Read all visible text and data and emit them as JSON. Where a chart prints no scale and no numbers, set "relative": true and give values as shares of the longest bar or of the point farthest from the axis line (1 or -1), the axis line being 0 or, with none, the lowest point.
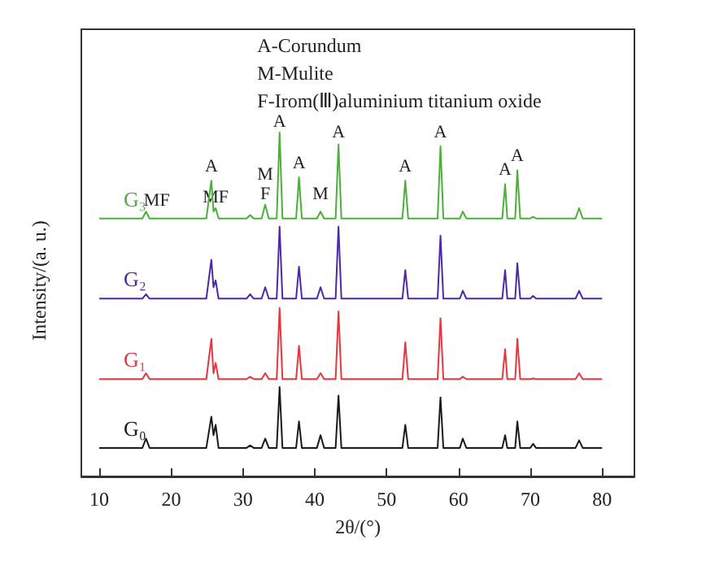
{
  "chart_data": {
    "type": "line",
    "relative": true,
    "xlabel": "2θ/(°)",
    "ylabel": "Intensity/(a. u.)",
    "x": [
      10,
      16,
      16.5,
      17,
      24.9,
      25.6,
      25.9,
      26.2,
      26.6,
      30.5,
      31,
      31.5,
      32.6,
      33.1,
      33.6,
      34.7,
      35.1,
      35.5,
      37.4,
      37.8,
      38.2,
      40.3,
      40.8,
      41.3,
      42.9,
      43.3,
      43.7,
      52.2,
      52.6,
      53,
      57.1,
      57.5,
      57.9,
      60.2,
      60.6,
      61.1,
      66.1,
      66.5,
      66.8,
      67.9,
      68.2,
      68.6,
      70.0,
      70.4,
      70.8,
      76.3,
      76.8,
      77.3,
      80
    ],
    "xlim": [
      7.5,
      84.5
    ],
    "xticks": [
      10,
      20,
      30,
      40,
      50,
      60,
      70,
      80
    ],
    "series": [
      {
        "name": "G₀",
        "color": "#1a1a1a",
        "values": [
          0.083,
          0.083,
          0.11,
          0.083,
          0.083,
          0.174,
          0.12,
          0.15,
          0.083,
          0.083,
          0.09,
          0.083,
          0.083,
          0.11,
          0.083,
          0.083,
          0.26,
          0.083,
          0.083,
          0.16,
          0.083,
          0.083,
          0.12,
          0.083,
          0.083,
          0.235,
          0.083,
          0.083,
          0.15,
          0.083,
          0.083,
          0.23,
          0.083,
          0.083,
          0.11,
          0.083,
          0.083,
          0.12,
          0.083,
          0.083,
          0.16,
          0.083,
          0.083,
          0.095,
          0.083,
          0.083,
          0.105,
          0.083,
          0.083
        ]
      },
      {
        "name": "G₁",
        "color": "#e8363f",
        "values": [
          0.283,
          0.283,
          0.3,
          0.283,
          0.283,
          0.4,
          0.3,
          0.33,
          0.283,
          0.283,
          0.29,
          0.283,
          0.283,
          0.3,
          0.283,
          0.283,
          0.49,
          0.283,
          0.283,
          0.38,
          0.283,
          0.283,
          0.3,
          0.283,
          0.283,
          0.48,
          0.283,
          0.283,
          0.39,
          0.283,
          0.283,
          0.46,
          0.283,
          0.283,
          0.29,
          0.283,
          0.283,
          0.37,
          0.283,
          0.283,
          0.4,
          0.283,
          0.283,
          0.285,
          0.283,
          0.283,
          0.3,
          0.283,
          0.283
        ]
      },
      {
        "name": "G₂",
        "color": "#4a2aa8",
        "values": [
          0.517,
          0.517,
          0.53,
          0.517,
          0.517,
          0.63,
          0.55,
          0.57,
          0.517,
          0.517,
          0.53,
          0.517,
          0.517,
          0.55,
          0.517,
          0.517,
          0.726,
          0.517,
          0.517,
          0.61,
          0.517,
          0.517,
          0.55,
          0.517,
          0.517,
          0.726,
          0.517,
          0.517,
          0.6,
          0.517,
          0.517,
          0.7,
          0.517,
          0.517,
          0.54,
          0.517,
          0.517,
          0.6,
          0.517,
          0.517,
          0.62,
          0.517,
          0.517,
          0.525,
          0.517,
          0.517,
          0.54,
          0.517,
          0.517
        ]
      },
      {
        "name": "G₃",
        "color": "#4caf3a",
        "values": [
          0.75,
          0.75,
          0.77,
          0.75,
          0.75,
          0.86,
          0.77,
          0.78,
          0.75,
          0.75,
          0.76,
          0.75,
          0.75,
          0.79,
          0.75,
          0.75,
          1,
          0.75,
          0.75,
          0.87,
          0.75,
          0.75,
          0.77,
          0.75,
          0.75,
          0.965,
          0.75,
          0.75,
          0.86,
          0.75,
          0.75,
          0.96,
          0.75,
          0.75,
          0.77,
          0.75,
          0.75,
          0.85,
          0.75,
          0.75,
          0.89,
          0.75,
          0.75,
          0.755,
          0.75,
          0.75,
          0.78,
          0.75,
          0.75
        ]
      }
    ],
    "annotations": [
      "A-Corundum",
      "M-Mulite",
      "F-Irom(Ⅲ)aluminium titanium oxide",
      {
        "text": "A",
        "x": 25.6,
        "y": 0.87
      },
      {
        "text": "MF",
        "x": 26.2,
        "y": 0.78
      },
      {
        "text": "MF",
        "x": 18,
        "y": 0.77
      },
      {
        "text": "F",
        "x": 33.1,
        "y": 0.79
      },
      {
        "text": "M",
        "x": 33.1,
        "y": 0.79
      },
      {
        "text": "A",
        "x": 35.1,
        "y": 1.0
      },
      {
        "text": "A",
        "x": 37.8,
        "y": 0.88
      },
      {
        "text": "M",
        "x": 40.8,
        "y": 0.79
      },
      {
        "text": "A",
        "x": 43.3,
        "y": 0.97
      },
      {
        "text": "A",
        "x": 52.6,
        "y": 0.87
      },
      {
        "text": "A",
        "x": 57.5,
        "y": 0.97
      },
      {
        "text": "A",
        "x": 66.5,
        "y": 0.86
      },
      {
        "text": "A",
        "x": 68.2,
        "y": 0.9
      }
    ]
  }
}
